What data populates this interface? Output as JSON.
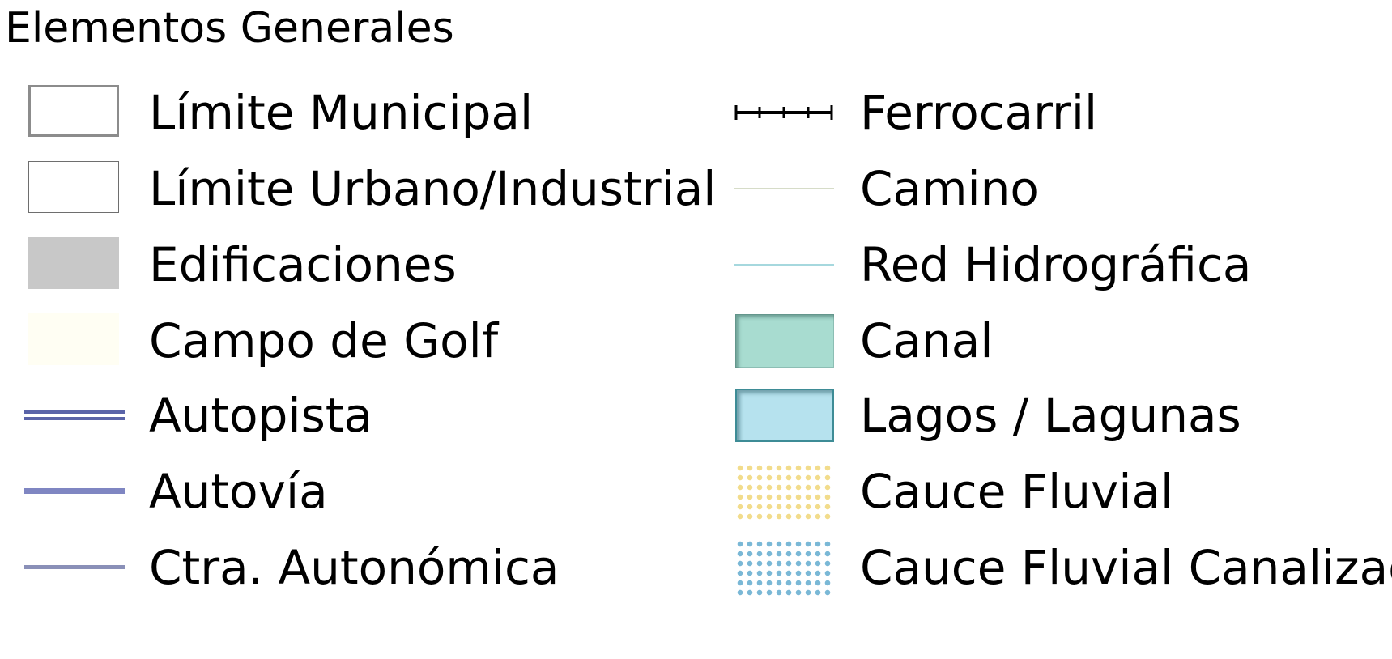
{
  "legend": {
    "title": "Elementos Generales",
    "left_items": [
      {
        "label": "Límite Municipal",
        "icon": "municipal-boundary-symbol"
      },
      {
        "label": "Límite Urbano/Industrial",
        "icon": "urban-boundary-symbol"
      },
      {
        "label": "Edificaciones",
        "icon": "buildings-symbol"
      },
      {
        "label": "Campo de Golf",
        "icon": "golf-course-symbol"
      },
      {
        "label": "Autopista",
        "icon": "motorway-symbol"
      },
      {
        "label": "Autovía",
        "icon": "dual-carriageway-symbol"
      },
      {
        "label": "Ctra. Autonómica",
        "icon": "regional-road-symbol"
      }
    ],
    "right_items": [
      {
        "label": "Ferrocarril",
        "icon": "railway-symbol"
      },
      {
        "label": "Camino",
        "icon": "path-symbol"
      },
      {
        "label": "Red Hidrográfica",
        "icon": "hydro-network-symbol"
      },
      {
        "label": "Canal",
        "icon": "canal-symbol"
      },
      {
        "label": "Lagos / Lagunas",
        "icon": "lakes-symbol"
      },
      {
        "label": "Cauce Fluvial",
        "icon": "river-channel-symbol"
      },
      {
        "label": "Cauce Fluvial Canalizado",
        "icon": "channelized-river-symbol"
      }
    ]
  },
  "colors": {
    "municipal_boundary": "#8c8c8c",
    "urban_boundary": "#6e6e6e",
    "buildings": "#c8c8c8",
    "golf_course": "#fffef6",
    "motorway": "#5a64a8",
    "dual_carriageway": "#7f86c2",
    "regional_road": "#8a90b8",
    "railway": "#000000",
    "path": "#d6dcc8",
    "hydro_network": "#a6d8de",
    "canal_fill": "#a8dcd0",
    "canal_edge": "#6b9e98",
    "lakes_fill": "#b6e2ee",
    "lakes_edge": "#3e8c96",
    "river_dots": "#f2dc8c",
    "channelized_dots": "#7ab8d6"
  }
}
